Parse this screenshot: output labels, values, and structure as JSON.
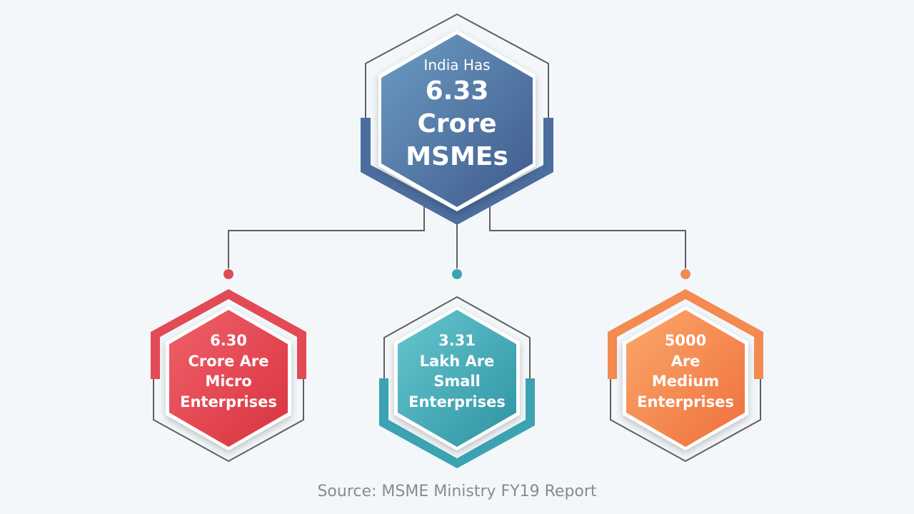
{
  "top_node": {
    "line1": "India Has",
    "line2": "6.33",
    "line3": "Crore",
    "line4": "MSMEs",
    "color": "#4a6c9c"
  },
  "children": [
    {
      "line1": "6.30",
      "line2": "Crore Are",
      "line3": "Micro",
      "line4": "Enterprises",
      "color": "#e24a55"
    },
    {
      "line1": "3.31",
      "line2": "Lakh Are",
      "line3": "Small",
      "line4": "Enterprises",
      "color": "#3ca3b2"
    },
    {
      "line1": "5000",
      "line2": "Are",
      "line3": "Medium",
      "line4": "Enterprises",
      "color": "#f38a50"
    }
  ],
  "source": "Source: MSME Ministry FY19 Report"
}
